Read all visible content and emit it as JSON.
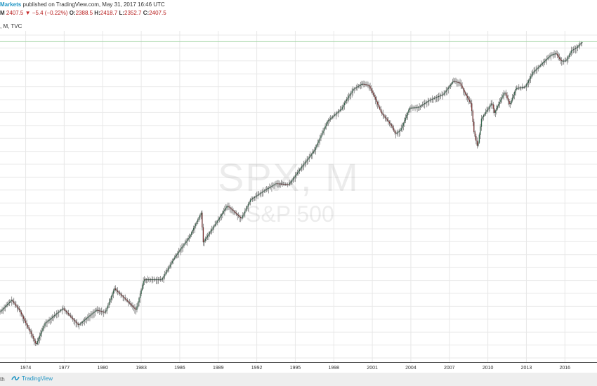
{
  "header": {
    "author": "Markets",
    "published_text": "published on TradingView.com, May 31, 2017 16:46 UTC",
    "symbol_prefix": "M",
    "last": "2407.5",
    "change": "−5.4 (−0.22%)",
    "open_label": "O:",
    "open": "2388.5",
    "high_label": "H:",
    "high": "2418.7",
    "low_label": "L:",
    "low": "2352.7",
    "close_label": "C:",
    "close": "2407.5",
    "series_info": ", M, TVC"
  },
  "watermark": {
    "symbol": "SPX, M",
    "name": "S&P 500"
  },
  "footer": {
    "left_text": "th",
    "brand": "TradingView"
  },
  "colors": {
    "up": "#2e7d53",
    "down": "#a02c2c",
    "grid": "#e8e8e8",
    "last_price_line": "#a5d6a7",
    "brand": "#2196c4"
  },
  "chart_data": {
    "type": "line",
    "title": "SPX, M",
    "subtitle": "S&P 500",
    "xlabel": "",
    "ylabel": "",
    "scale": "log",
    "xlim": [
      1972,
      2018.5
    ],
    "ylim": [
      60,
      2600
    ],
    "x_ticks": [
      "1974",
      "1977",
      "1980",
      "1983",
      "1986",
      "1989",
      "1992",
      "1995",
      "1998",
      "2001",
      "2004",
      "2007",
      "2010",
      "2013",
      "2016"
    ],
    "grid": true,
    "series": [
      {
        "values": [
          [
            1972.0,
            103
          ],
          [
            1972.9,
            118
          ],
          [
            1973.5,
            105
          ],
          [
            1974.4,
            80
          ],
          [
            1974.8,
            70
          ],
          [
            1975.5,
            90
          ],
          [
            1976.9,
            107
          ],
          [
            1978.1,
            88
          ],
          [
            1979.5,
            105
          ],
          [
            1980.2,
            102
          ],
          [
            1980.9,
            135
          ],
          [
            1982.6,
            105
          ],
          [
            1983.2,
            150
          ],
          [
            1984.6,
            150
          ],
          [
            1985.5,
            190
          ],
          [
            1986.8,
            250
          ],
          [
            1987.7,
            330
          ],
          [
            1987.8,
            230
          ],
          [
            1988.5,
            270
          ],
          [
            1989.7,
            355
          ],
          [
            1990.8,
            305
          ],
          [
            1991.5,
            380
          ],
          [
            1992.5,
            420
          ],
          [
            1993.5,
            460
          ],
          [
            1994.5,
            455
          ],
          [
            1995.5,
            560
          ],
          [
            1996.5,
            680
          ],
          [
            1997.5,
            950
          ],
          [
            1998.6,
            1100
          ],
          [
            1998.9,
            1200
          ],
          [
            1999.5,
            1380
          ],
          [
            2000.2,
            1470
          ],
          [
            2000.7,
            1450
          ],
          [
            2001.2,
            1250
          ],
          [
            2001.7,
            1050
          ],
          [
            2002.5,
            900
          ],
          [
            2002.8,
            820
          ],
          [
            2003.2,
            860
          ],
          [
            2003.9,
            1110
          ],
          [
            2004.6,
            1120
          ],
          [
            2005.5,
            1220
          ],
          [
            2006.5,
            1300
          ],
          [
            2007.3,
            1520
          ],
          [
            2007.8,
            1490
          ],
          [
            2008.2,
            1320
          ],
          [
            2008.7,
            1160
          ],
          [
            2008.9,
            850
          ],
          [
            2009.2,
            700
          ],
          [
            2009.5,
            980
          ],
          [
            2010.3,
            1180
          ],
          [
            2010.5,
            1050
          ],
          [
            2011.3,
            1340
          ],
          [
            2011.7,
            1150
          ],
          [
            2012.2,
            1400
          ],
          [
            2012.9,
            1420
          ],
          [
            2013.5,
            1680
          ],
          [
            2014.2,
            1860
          ],
          [
            2014.9,
            2060
          ],
          [
            2015.3,
            2100
          ],
          [
            2015.7,
            1920
          ],
          [
            2016.1,
            1930
          ],
          [
            2016.5,
            2170
          ],
          [
            2016.9,
            2240
          ],
          [
            2017.2,
            2360
          ],
          [
            2017.4,
            2407.5
          ]
        ]
      }
    ]
  }
}
